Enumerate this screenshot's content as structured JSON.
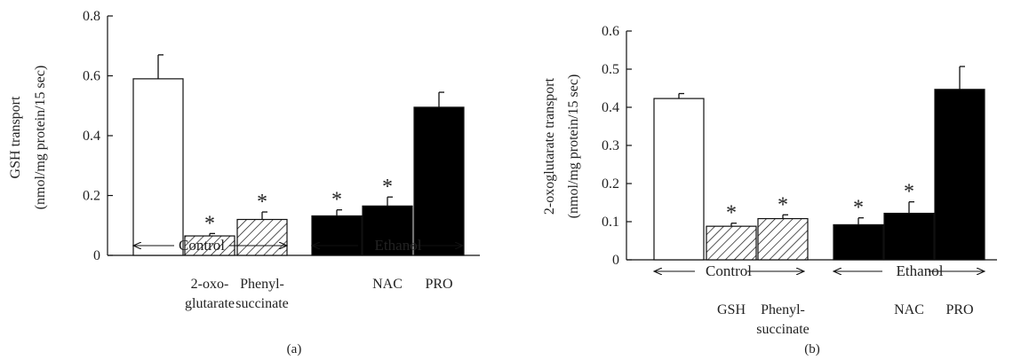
{
  "chart_data": [
    {
      "type": "bar",
      "panel_label": "(a)",
      "ylabel_lines": [
        "GSH transport",
        "(nmol/mg protein/15 sec)"
      ],
      "ylim": [
        0,
        0.8
      ],
      "yticks": [
        "0",
        "0.2",
        "0.4",
        "0.6",
        "0.8"
      ],
      "grid": false,
      "bars": [
        {
          "value": 0.59,
          "error": 0.08,
          "fill": "open",
          "star": false,
          "label_lines": []
        },
        {
          "value": 0.065,
          "error": 0.008,
          "fill": "hatched",
          "star": true,
          "label_lines": [
            "2-oxo-",
            "glutarate"
          ]
        },
        {
          "value": 0.12,
          "error": 0.025,
          "fill": "hatched",
          "star": true,
          "label_lines": [
            "Phenyl-",
            "succinate"
          ]
        },
        {
          "value": 0.132,
          "error": 0.02,
          "fill": "solid",
          "star": true,
          "label_lines": []
        },
        {
          "value": 0.165,
          "error": 0.03,
          "fill": "solid",
          "star": true,
          "label_lines": [
            "NAC"
          ]
        },
        {
          "value": 0.495,
          "error": 0.05,
          "fill": "solid",
          "star": false,
          "label_lines": [
            "PRO"
          ]
        }
      ],
      "groups": [
        {
          "label": "Control",
          "bars": [
            0,
            2
          ]
        },
        {
          "label": "Ethanol",
          "bars": [
            3,
            5
          ]
        }
      ],
      "star_symbol": "*"
    },
    {
      "type": "bar",
      "panel_label": "(b)",
      "ylabel_lines": [
        "2-oxoglutarate transport",
        "(nmol/mg protein/15 sec)"
      ],
      "ylim": [
        0,
        0.6
      ],
      "yticks": [
        "0",
        "0.1",
        "0.2",
        "0.3",
        "0.4",
        "0.5",
        "0.6"
      ],
      "grid": false,
      "bars": [
        {
          "value": 0.423,
          "error": 0.013,
          "fill": "open",
          "star": false,
          "label_lines": []
        },
        {
          "value": 0.088,
          "error": 0.008,
          "fill": "hatched",
          "star": true,
          "label_lines": [
            "GSH"
          ]
        },
        {
          "value": 0.108,
          "error": 0.01,
          "fill": "hatched",
          "star": true,
          "label_lines": [
            "Phenyl-",
            "succinate"
          ]
        },
        {
          "value": 0.092,
          "error": 0.018,
          "fill": "solid",
          "star": true,
          "label_lines": []
        },
        {
          "value": 0.122,
          "error": 0.03,
          "fill": "solid",
          "star": true,
          "label_lines": [
            "NAC"
          ]
        },
        {
          "value": 0.447,
          "error": 0.06,
          "fill": "solid",
          "star": false,
          "label_lines": [
            "PRO"
          ]
        }
      ],
      "groups": [
        {
          "label": "Control",
          "bars": [
            0,
            2
          ]
        },
        {
          "label": "Ethanol",
          "bars": [
            3,
            5
          ]
        }
      ],
      "star_symbol": "*"
    }
  ]
}
